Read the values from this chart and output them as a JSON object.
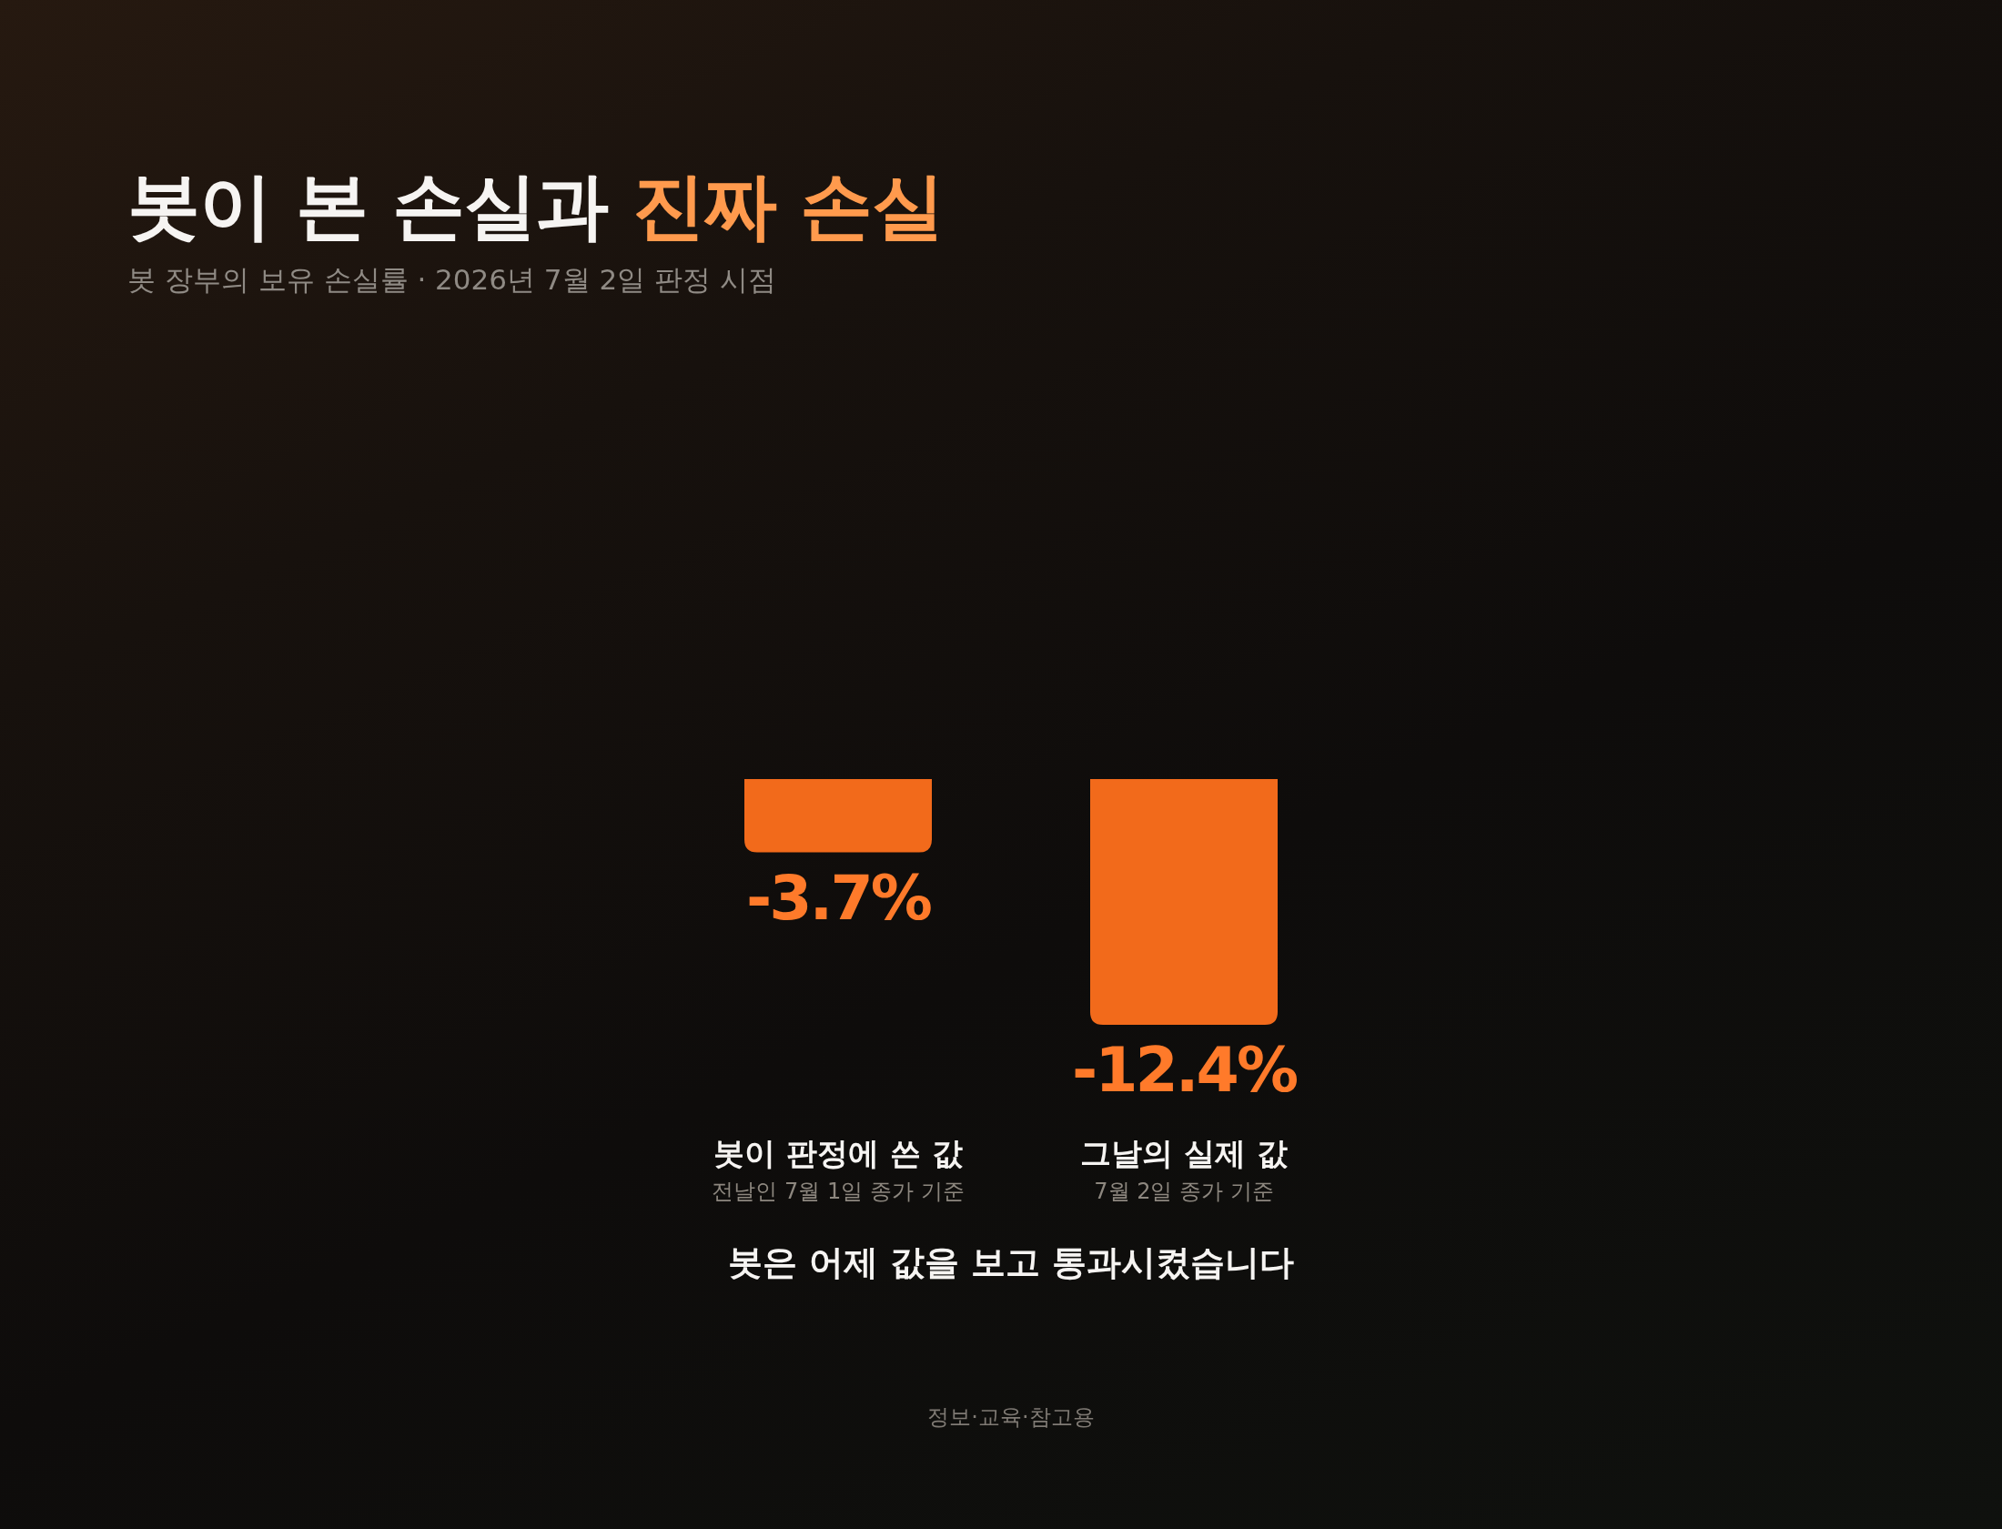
{
  "chart_data": {
    "type": "bar",
    "title": "봇이 본 손실과 **진짜 손실**",
    "subtitle": "봇 장부의 보유 손실률 · 2026년 7월 2일 판정 시점",
    "categories": [
      "봇이 판정에 쓴 값\n전날인 7월 1일 종가 기준",
      "그날의 실제 값\n7월 2일 종가 기준"
    ],
    "values": [
      -3.7,
      -12.4
    ],
    "value_labels": [
      "-3.7%",
      "-12.4%"
    ],
    "color": "#f26a1b",
    "annotations": [
      "봇은 어제 값을 보고 통과시켰습니다",
      "정보·교육·참고용"
    ]
  }
}
